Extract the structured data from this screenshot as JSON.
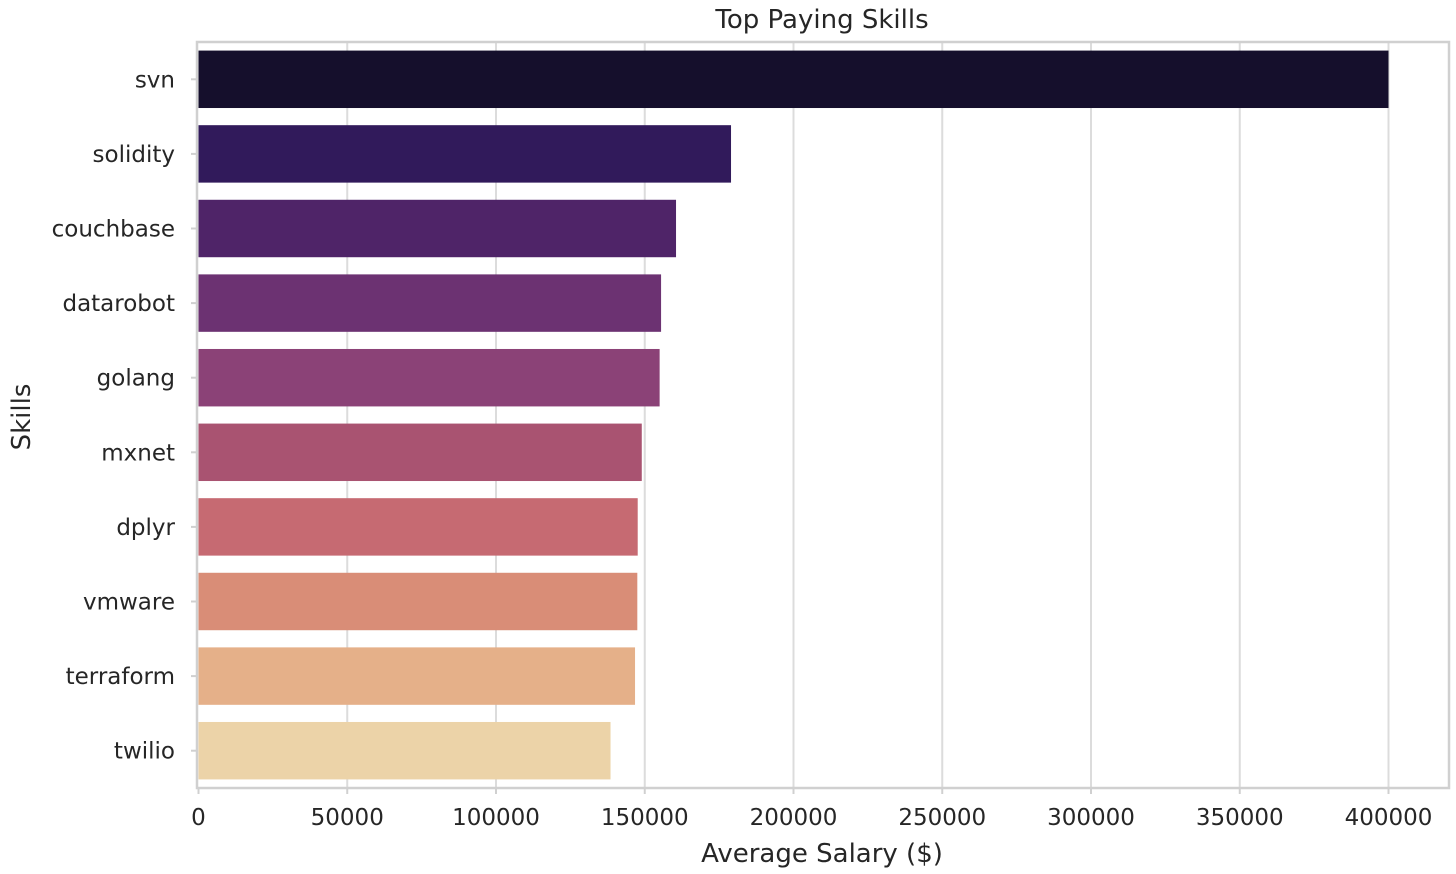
{
  "chart_data": {
    "type": "bar",
    "orientation": "horizontal",
    "title": "Top Paying Skills",
    "xlabel": "Average Salary ($)",
    "ylabel": "Skills",
    "xlim": [
      0,
      421000
    ],
    "xticks": [
      0,
      50000,
      100000,
      150000,
      200000,
      250000,
      300000,
      350000,
      400000
    ],
    "grid": true,
    "categories": [
      "svn",
      "solidity",
      "couchbase",
      "datarobot",
      "golang",
      "mxnet",
      "dplyr",
      "vmware",
      "terraform",
      "twilio"
    ],
    "values": [
      400000,
      179000,
      160515,
      155486,
      155000,
      149000,
      147633,
      147500,
      146734,
      138500
    ],
    "colors": [
      "#150f2c",
      "#311a5b",
      "#4f2468",
      "#6c3272",
      "#8b4277",
      "#a95371",
      "#c66a72",
      "#d98d77",
      "#e5b089",
      "#ecd3a8"
    ]
  }
}
